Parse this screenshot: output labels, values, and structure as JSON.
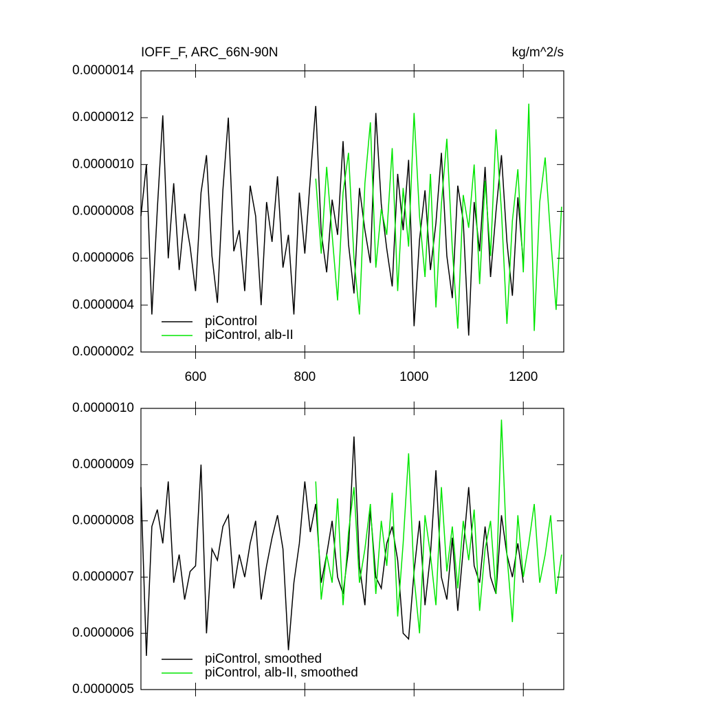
{
  "chart_data": [
    {
      "type": "line",
      "title": "IOFF_F, ARC_66N-90N",
      "units": "kg/m^2/s",
      "xlim": [
        500,
        1274
      ],
      "xticks": [
        600,
        800,
        1000,
        1200
      ],
      "show_xtick_labels": true,
      "ylim": [
        2e-07,
        1.4e-06
      ],
      "yticks": [
        {
          "value": 2e-07,
          "label": "0.0000002"
        },
        {
          "value": 4e-07,
          "label": "0.0000004"
        },
        {
          "value": 6e-07,
          "label": "0.0000006"
        },
        {
          "value": 8e-07,
          "label": "0.0000008"
        },
        {
          "value": 1e-06,
          "label": "0.0000010"
        },
        {
          "value": 1.2e-06,
          "label": "0.0000012"
        },
        {
          "value": 1.4e-06,
          "label": "0.0000014"
        }
      ],
      "legend": "bottom-left",
      "series": [
        {
          "name": "piControl",
          "color": "#000000",
          "x": [
            500,
            510,
            520,
            530,
            540,
            550,
            560,
            570,
            580,
            590,
            600,
            610,
            620,
            630,
            640,
            650,
            660,
            670,
            680,
            690,
            700,
            710,
            720,
            730,
            740,
            750,
            760,
            770,
            780,
            790,
            800,
            810,
            820,
            830,
            840,
            850,
            860,
            870,
            880,
            890,
            900,
            910,
            920,
            930,
            940,
            950,
            960,
            970,
            980,
            990,
            1000,
            1010,
            1020,
            1030,
            1040,
            1050,
            1060,
            1070,
            1080,
            1090,
            1100,
            1110,
            1120,
            1130,
            1140,
            1150,
            1160,
            1170,
            1180,
            1190,
            1200
          ],
          "values": [
            7.8e-07,
            1e-06,
            3.6e-07,
            8.1e-07,
            1.21e-06,
            6e-07,
            9.2e-07,
            5.5e-07,
            7.9e-07,
            6.5e-07,
            4.6e-07,
            8.8e-07,
            1.04e-06,
            6.1e-07,
            4.1e-07,
            8.9e-07,
            1.2e-06,
            6.3e-07,
            7.2e-07,
            4.6e-07,
            9.1e-07,
            7.8e-07,
            4e-07,
            8.4e-07,
            6.7e-07,
            9.5e-07,
            5.6e-07,
            7e-07,
            3.6e-07,
            8.8e-07,
            6.2e-07,
            9.4e-07,
            1.25e-06,
            7.1e-07,
            5.4e-07,
            8.5e-07,
            7e-07,
            1.1e-06,
            6.6e-07,
            4.5e-07,
            9e-07,
            7.2e-07,
            5.8e-07,
            1.22e-06,
            8.3e-07,
            6.4e-07,
            4.8e-07,
            9.6e-07,
            7.2e-07,
            1.02e-06,
            3.1e-07,
            6.8e-07,
            8.9e-07,
            5.5e-07,
            7.5e-07,
            1.05e-06,
            6.1e-07,
            4.3e-07,
            9.1e-07,
            7.6e-07,
            2.7e-07,
            8.4e-07,
            6.3e-07,
            9.9e-07,
            5.2e-07,
            8e-07,
            1.04e-06,
            6.7e-07,
            4.4e-07,
            8.6e-07,
            5.8e-07
          ]
        },
        {
          "name": "piControl, alb-II",
          "color": "#00e600",
          "x": [
            820,
            830,
            840,
            850,
            860,
            870,
            880,
            890,
            900,
            910,
            920,
            930,
            940,
            950,
            960,
            970,
            980,
            990,
            1000,
            1010,
            1020,
            1030,
            1040,
            1050,
            1060,
            1070,
            1080,
            1090,
            1100,
            1110,
            1120,
            1130,
            1140,
            1150,
            1160,
            1170,
            1180,
            1190,
            1200,
            1210,
            1220,
            1230,
            1240,
            1250,
            1260,
            1270
          ],
          "values": [
            9.4e-07,
            6.2e-07,
            9.9e-07,
            7e-07,
            4.2e-07,
            8.8e-07,
            1.05e-06,
            6e-07,
            3.6e-07,
            9.2e-07,
            1.18e-06,
            5.6e-07,
            8.1e-07,
            7e-07,
            1.07e-06,
            4.6e-07,
            9e-07,
            6.5e-07,
            1.22e-06,
            7.8e-07,
            5.2e-07,
            9.6e-07,
            3.9e-07,
            8.3e-07,
            1.11e-06,
            6.4e-07,
            3e-07,
            8.7e-07,
            7.3e-07,
            1e-06,
            4.9e-07,
            9.3e-07,
            6.1e-07,
            1.15e-06,
            8e-07,
            3.2e-07,
            7.6e-07,
            9.8e-07,
            5.4e-07,
            1.26e-06,
            2.9e-07,
            8.4e-07,
            1.03e-06,
            6.9e-07,
            3.8e-07,
            8.2e-07
          ]
        }
      ]
    },
    {
      "type": "line",
      "xlim": [
        500,
        1274
      ],
      "xticks": [
        600,
        800,
        1000,
        1200
      ],
      "show_xtick_labels": false,
      "ylim": [
        5e-07,
        1e-06
      ],
      "yticks": [
        {
          "value": 5e-07,
          "label": "0.0000005"
        },
        {
          "value": 6e-07,
          "label": "0.0000006"
        },
        {
          "value": 7e-07,
          "label": "0.0000007"
        },
        {
          "value": 8e-07,
          "label": "0.0000008"
        },
        {
          "value": 9e-07,
          "label": "0.0000009"
        },
        {
          "value": 1e-06,
          "label": "0.0000010"
        }
      ],
      "legend": "bottom-left",
      "series": [
        {
          "name": "piControl, smoothed",
          "color": "#000000",
          "x": [
            500,
            510,
            520,
            530,
            540,
            550,
            560,
            570,
            580,
            590,
            600,
            610,
            620,
            630,
            640,
            650,
            660,
            670,
            680,
            690,
            700,
            710,
            720,
            730,
            740,
            750,
            760,
            770,
            780,
            790,
            800,
            810,
            820,
            830,
            840,
            850,
            860,
            870,
            880,
            890,
            900,
            910,
            920,
            930,
            940,
            950,
            960,
            970,
            980,
            990,
            1000,
            1010,
            1020,
            1030,
            1040,
            1050,
            1060,
            1070,
            1080,
            1090,
            1100,
            1110,
            1120,
            1130,
            1140,
            1150,
            1160,
            1170,
            1180,
            1190,
            1200
          ],
          "values": [
            8.6e-07,
            5.6e-07,
            7.9e-07,
            8.2e-07,
            7.6e-07,
            8.7e-07,
            6.9e-07,
            7.4e-07,
            6.6e-07,
            7.1e-07,
            7.2e-07,
            9e-07,
            6e-07,
            7.5e-07,
            7.3e-07,
            7.9e-07,
            8.1e-07,
            6.8e-07,
            7.4e-07,
            7e-07,
            7.6e-07,
            8e-07,
            6.6e-07,
            7.2e-07,
            7.7e-07,
            8.1e-07,
            7.5e-07,
            5.7e-07,
            6.9e-07,
            7.6e-07,
            8.7e-07,
            7.8e-07,
            8.3e-07,
            6.9e-07,
            7.4e-07,
            8e-07,
            7e-07,
            6.7e-07,
            7.5e-07,
            9.5e-07,
            7.2e-07,
            6.5e-07,
            8.2e-07,
            7e-07,
            6.8e-07,
            7.6e-07,
            7.9e-07,
            7.3e-07,
            6e-07,
            5.9e-07,
            7.1e-07,
            8e-07,
            6.5e-07,
            7.4e-07,
            8.9e-07,
            7e-07,
            6.6e-07,
            7.7e-07,
            6.4e-07,
            7.5e-07,
            8.6e-07,
            7.2e-07,
            6.9e-07,
            7.9e-07,
            7e-07,
            6.7e-07,
            8.1e-07,
            7.4e-07,
            7e-07,
            7.6e-07,
            6.9e-07
          ]
        },
        {
          "name": "piControl, alb-II, smoothed",
          "color": "#00e600",
          "x": [
            820,
            830,
            840,
            850,
            860,
            870,
            880,
            890,
            900,
            910,
            920,
            930,
            940,
            950,
            960,
            970,
            980,
            990,
            1000,
            1010,
            1020,
            1030,
            1040,
            1050,
            1060,
            1070,
            1080,
            1090,
            1100,
            1110,
            1120,
            1130,
            1140,
            1150,
            1160,
            1170,
            1180,
            1190,
            1200,
            1210,
            1220,
            1230,
            1240,
            1250,
            1260,
            1270
          ],
          "values": [
            8.7e-07,
            6.6e-07,
            7.4e-07,
            6.9e-07,
            8.4e-07,
            6.5e-07,
            7.8e-07,
            8.6e-07,
            6.9e-07,
            7.5e-07,
            8.3e-07,
            6.7e-07,
            8e-07,
            7.2e-07,
            8.5e-07,
            6.3e-07,
            7.6e-07,
            9.2e-07,
            7e-07,
            6e-07,
            8.1e-07,
            7.4e-07,
            6.5e-07,
            8.6e-07,
            7.1e-07,
            7.9e-07,
            6.8e-07,
            8e-07,
            7.3e-07,
            8.2e-07,
            6.4e-07,
            7.5e-07,
            8e-07,
            6.7e-07,
            9.8e-07,
            7.4e-07,
            6.2e-07,
            8.1e-07,
            7e-07,
            7.6e-07,
            8.3e-07,
            6.9e-07,
            7.4e-07,
            8.1e-07,
            6.7e-07,
            7.4e-07
          ]
        }
      ]
    }
  ]
}
